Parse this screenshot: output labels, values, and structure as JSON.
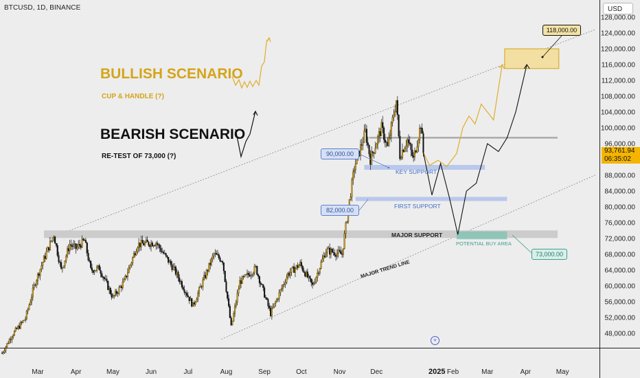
{
  "header": {
    "title": "BTCUSD, 1D, BINANCE",
    "currency": "USD"
  },
  "current_price": {
    "value": "93,761.94",
    "countdown": "06:35:02"
  },
  "annotations": {
    "bullish_title": "BULLISH SCENARIO",
    "bullish_sub": "CUP & HANDLE (?)",
    "bearish_title": "BEARISH SCENARIO",
    "bearish_sub": "RE-TEST OF 73,000 (?)",
    "key_support": "KEY SUPPORT",
    "first_support": "FIRST SUPPORT",
    "major_support": "MAJOR SUPPORT",
    "potential_buy": "POTENTIAL BUY AREA",
    "trend_line": "MAJOR TREND LINE",
    "price_90k": "90,000.00",
    "price_82k": "82,000.00",
    "price_73k": "73,000.00",
    "price_118k": "118,000.00"
  },
  "chart_data": {
    "type": "candlestick",
    "title": "",
    "x_tick_labels": [
      "Mar",
      "Apr",
      "May",
      "Jun",
      "Jul",
      "Aug",
      "Sep",
      "Oct",
      "Nov",
      "Dec",
      "2025",
      "Feb",
      "Mar",
      "Apr",
      "May"
    ],
    "y_tick_labels": [
      "48,000.00",
      "52,000.00",
      "56,000.00",
      "60,000.00",
      "64,000.00",
      "68,000.00",
      "72,000.00",
      "76,000.00",
      "80,000.00",
      "84,000.00",
      "88,000.00",
      "96,000.00",
      "100,000.00",
      "104,000.00",
      "108,000.00",
      "112,000.00",
      "116,000.00",
      "120,000.00",
      "124,000.00",
      "128,000.00"
    ],
    "ylim": [
      45000,
      130000
    ],
    "date_range": [
      "2024-02-01",
      "2025-05-31"
    ],
    "price_path": [
      [
        "2024-02-01",
        43000
      ],
      [
        "2024-02-09",
        47500
      ],
      [
        "2024-02-20",
        51800
      ],
      [
        "2024-02-28",
        61000
      ],
      [
        "2024-03-05",
        66000
      ],
      [
        "2024-03-14",
        73000
      ],
      [
        "2024-03-20",
        64000
      ],
      [
        "2024-03-27",
        70500
      ],
      [
        "2024-04-01",
        69500
      ],
      [
        "2024-04-08",
        71500
      ],
      [
        "2024-04-13",
        64000
      ],
      [
        "2024-04-20",
        64500
      ],
      [
        "2024-05-01",
        57000
      ],
      [
        "2024-05-10",
        61000
      ],
      [
        "2024-05-21",
        70500
      ],
      [
        "2024-06-05",
        71000
      ],
      [
        "2024-06-20",
        64000
      ],
      [
        "2024-07-05",
        55000
      ],
      [
        "2024-07-22",
        68000
      ],
      [
        "2024-07-29",
        66500
      ],
      [
        "2024-08-05",
        49500
      ],
      [
        "2024-08-12",
        61000
      ],
      [
        "2024-08-25",
        64500
      ],
      [
        "2024-09-06",
        53000
      ],
      [
        "2024-09-20",
        63000
      ],
      [
        "2024-09-30",
        65500
      ],
      [
        "2024-10-10",
        60000
      ],
      [
        "2024-10-21",
        69000
      ],
      [
        "2024-11-03",
        68000
      ],
      [
        "2024-11-06",
        75000
      ],
      [
        "2024-11-13",
        90000
      ],
      [
        "2024-11-22",
        99000
      ],
      [
        "2024-11-26",
        92000
      ],
      [
        "2024-12-05",
        100000
      ],
      [
        "2024-12-10",
        95000
      ],
      [
        "2024-12-17",
        107000
      ],
      [
        "2024-12-20",
        93000
      ],
      [
        "2024-12-26",
        97000
      ],
      [
        "2024-12-31",
        92000
      ],
      [
        "2025-01-06",
        101000
      ],
      [
        "2025-01-08",
        93761.94
      ]
    ],
    "bullish_path": [
      [
        "2025-01-08",
        93761.94
      ],
      [
        "2025-01-13",
        90500
      ],
      [
        "2025-01-20",
        91800
      ],
      [
        "2025-01-27",
        90200
      ],
      [
        "2025-02-04",
        93500
      ],
      [
        "2025-02-09",
        100000
      ],
      [
        "2025-02-14",
        103000
      ],
      [
        "2025-02-19",
        101000
      ],
      [
        "2025-02-24",
        106000
      ],
      [
        "2025-03-06",
        102000
      ],
      [
        "2025-03-13",
        116000
      ]
    ],
    "bearish_path": [
      [
        "2025-01-08",
        93761.94
      ],
      [
        "2025-01-15",
        83000
      ],
      [
        "2025-01-22",
        91000
      ],
      [
        "2025-01-29",
        82500
      ],
      [
        "2025-02-05",
        73000
      ],
      [
        "2025-02-12",
        84000
      ],
      [
        "2025-02-20",
        86000
      ],
      [
        "2025-03-01",
        96000
      ],
      [
        "2025-03-10",
        94000
      ],
      [
        "2025-03-17",
        97500
      ],
      [
        "2025-03-24",
        104000
      ],
      [
        "2025-04-02",
        116000
      ]
    ],
    "levels": {
      "resistance": 97500,
      "key_support": 90000,
      "first_support": 82000,
      "major_support": 73000,
      "target": 118000
    },
    "target_zone": {
      "x": [
        "2025-03-15",
        "2025-04-28"
      ],
      "y": [
        115000,
        120000
      ]
    },
    "buy_zone": {
      "x": [
        "2025-02-04",
        "2025-03-17"
      ],
      "y": [
        71800,
        73800
      ]
    },
    "channel_lines": [
      {
        "from": [
          "2024-03-10",
          72000
        ],
        "to": [
          "2025-03-10",
          115500
        ]
      },
      {
        "from": [
          "2024-07-28",
          46500
        ],
        "to": [
          "2025-04-28",
          84000
        ]
      }
    ]
  }
}
